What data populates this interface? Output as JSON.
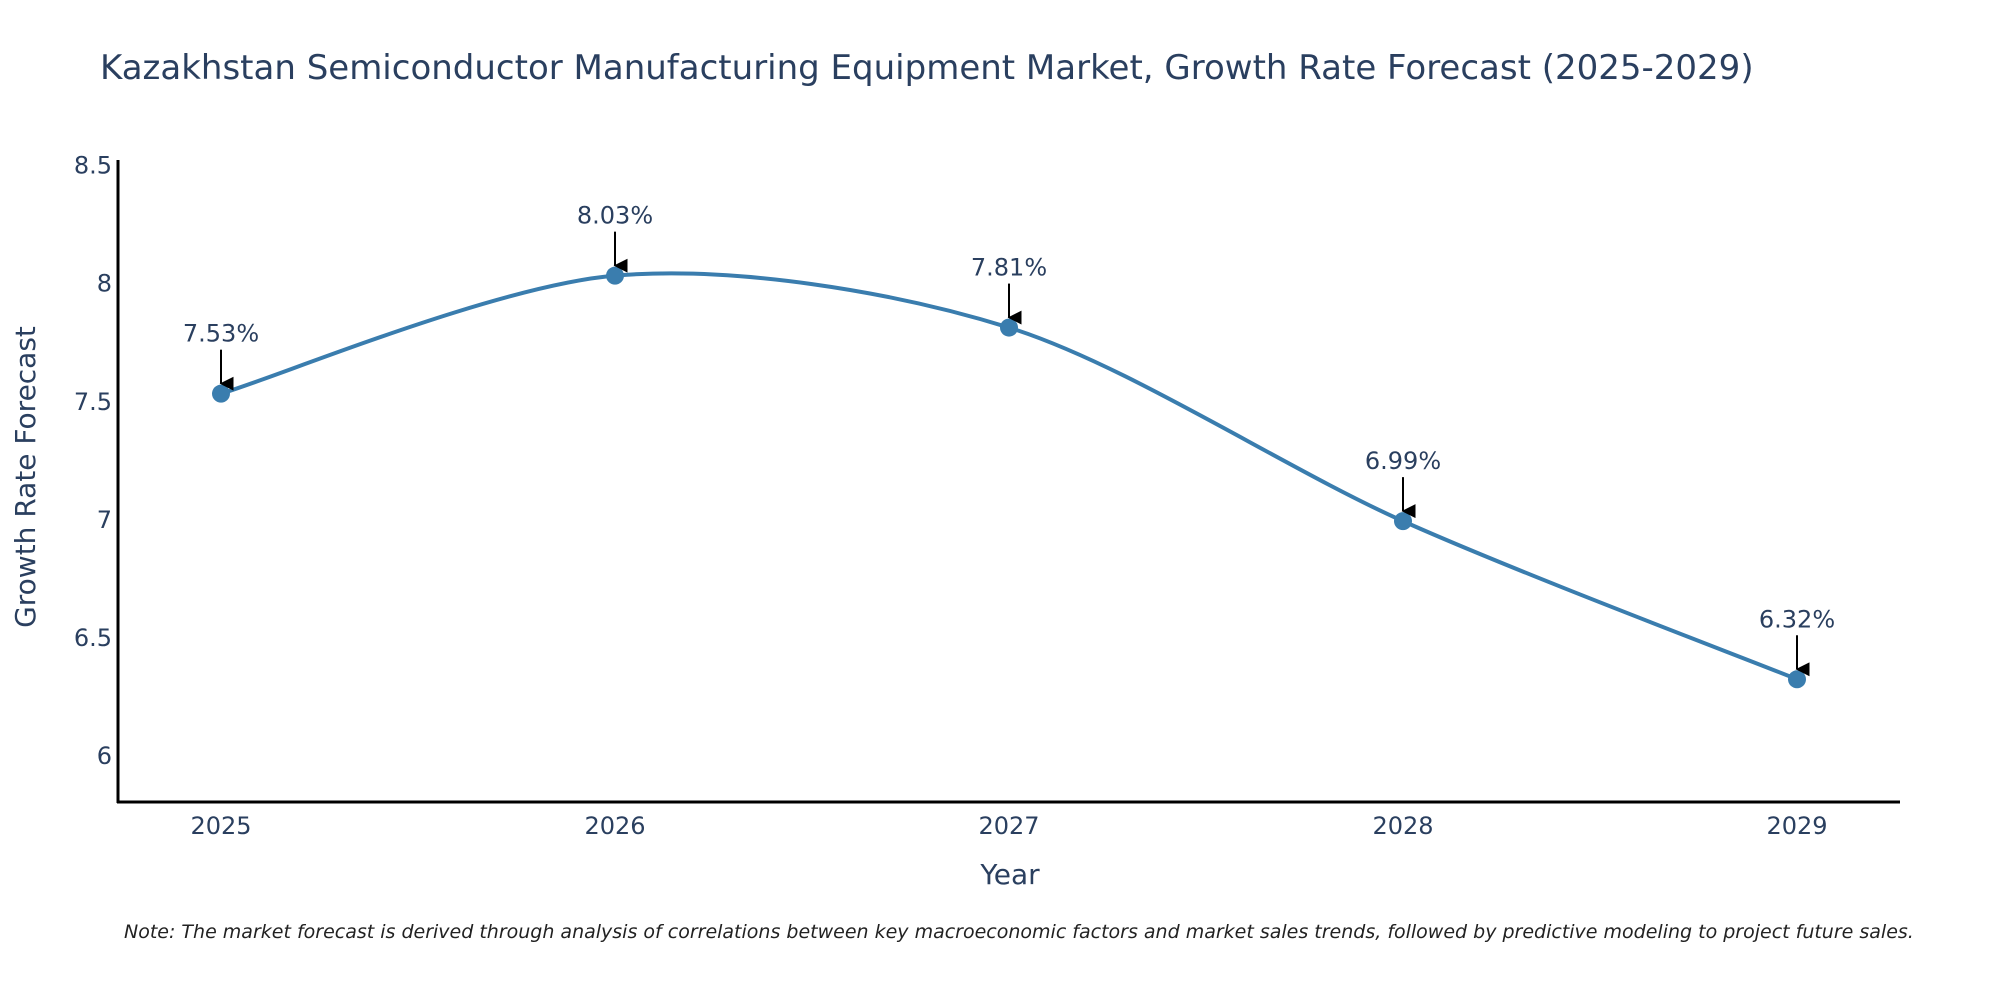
{
  "chart_data": {
    "type": "line",
    "title": "Kazakhstan Semiconductor Manufacturing Equipment Market, Growth Rate Forecast (2025-2029)",
    "xlabel": "Year",
    "ylabel": "Growth Rate Forecast",
    "categories": [
      "2025",
      "2026",
      "2027",
      "2028",
      "2029"
    ],
    "values": [
      7.53,
      8.03,
      7.81,
      6.99,
      6.32
    ],
    "data_labels": [
      "7.53%",
      "8.03%",
      "7.81%",
      "6.99%",
      "6.32%"
    ],
    "y_ticks": [
      6,
      6.5,
      7,
      7.5,
      8,
      8.5
    ],
    "y_tick_labels": [
      "6",
      "6.5",
      "7",
      "7.5",
      "8",
      "8.5"
    ],
    "ylim": [
      5.8,
      8.52
    ],
    "line_shape": "spline",
    "grid": false,
    "legend": "none",
    "line_color": "#3a7dae",
    "marker_color": "#3a7dae",
    "arrow_color": "#000000",
    "note": "Note: The market forecast is derived through analysis of correlations between key macroeconomic factors and market sales trends, followed by predictive modeling to project future sales."
  }
}
